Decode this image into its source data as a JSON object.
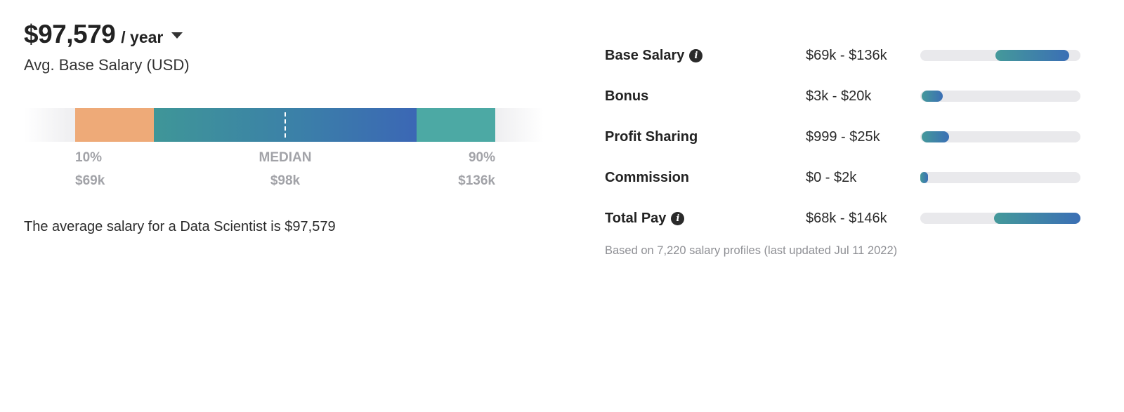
{
  "header": {
    "amount": "$97,579",
    "period": "/ year",
    "subtitle": "Avg. Base Salary (USD)"
  },
  "distribution": {
    "low_label": "10%",
    "median_label": "MEDIAN",
    "high_label": "90%",
    "low_value": "$69k",
    "median_value": "$98k",
    "high_value": "$136k",
    "colors": {
      "low": "#eeaa78",
      "mid_start": "#3f9698",
      "mid_end": "#3b67b5",
      "high": "#4ca9a4"
    }
  },
  "summary": "The average salary for a Data Scientist is $97,579",
  "pay_breakdown": [
    {
      "label": "Base Salary",
      "range": "$69k - $136k",
      "has_info": true,
      "fill_start": 0.47,
      "fill_end": 0.93
    },
    {
      "label": "Bonus",
      "range": "$3k - $20k",
      "has_info": false,
      "fill_start": 0.01,
      "fill_end": 0.14
    },
    {
      "label": "Profit Sharing",
      "range": "$999 - $25k",
      "has_info": false,
      "fill_start": 0.01,
      "fill_end": 0.18
    },
    {
      "label": "Commission",
      "range": "$0 - $2k",
      "has_info": false,
      "fill_start": 0.0,
      "fill_end": 0.05
    },
    {
      "label": "Total Pay",
      "range": "$68k - $146k",
      "has_info": true,
      "fill_start": 0.46,
      "fill_end": 1.0
    }
  ],
  "footnote": "Based on 7,220 salary profiles (last updated Jul 11 2022)",
  "icons": {
    "period_dropdown": "chevron-down-icon",
    "info": "info-icon"
  }
}
